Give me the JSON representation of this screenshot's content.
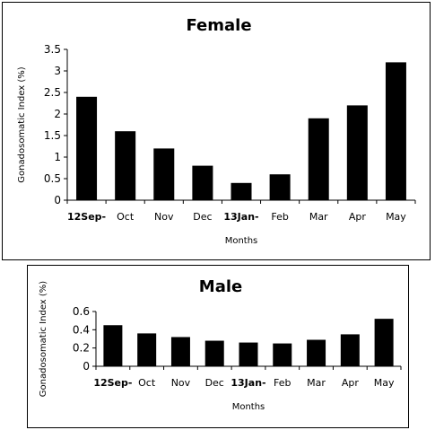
{
  "chart_data": [
    {
      "type": "bar",
      "title": "Female",
      "xlabel": "Months",
      "ylabel": "Gonadosomatic Index (%)",
      "categories": [
        "12Sep-",
        "Oct",
        "Nov",
        "Dec",
        "13Jan-",
        "Feb",
        "Mar",
        "Apr",
        "May"
      ],
      "values": [
        2.4,
        1.6,
        1.2,
        0.8,
        0.4,
        0.6,
        1.9,
        2.2,
        3.2
      ],
      "ylim": [
        0,
        3.5
      ],
      "yticks": [
        "0",
        "0.5",
        "1",
        "1.5",
        "2",
        "2.5",
        "3",
        "3.5"
      ],
      "grid": false,
      "bar_color": "#000000"
    },
    {
      "type": "bar",
      "title": "Male",
      "xlabel": "Months",
      "ylabel": "Gonadosomatic Index (%)",
      "categories": [
        "12Sep-",
        "Oct",
        "Nov",
        "Dec",
        "13Jan-",
        "Feb",
        "Mar",
        "Apr",
        "May"
      ],
      "values": [
        0.45,
        0.36,
        0.32,
        0.28,
        0.26,
        0.25,
        0.29,
        0.35,
        0.52
      ],
      "ylim": [
        0,
        0.6
      ],
      "yticks": [
        "0",
        "0.2",
        "0.4",
        "0.6"
      ],
      "grid": false,
      "bar_color": "#000000"
    }
  ]
}
